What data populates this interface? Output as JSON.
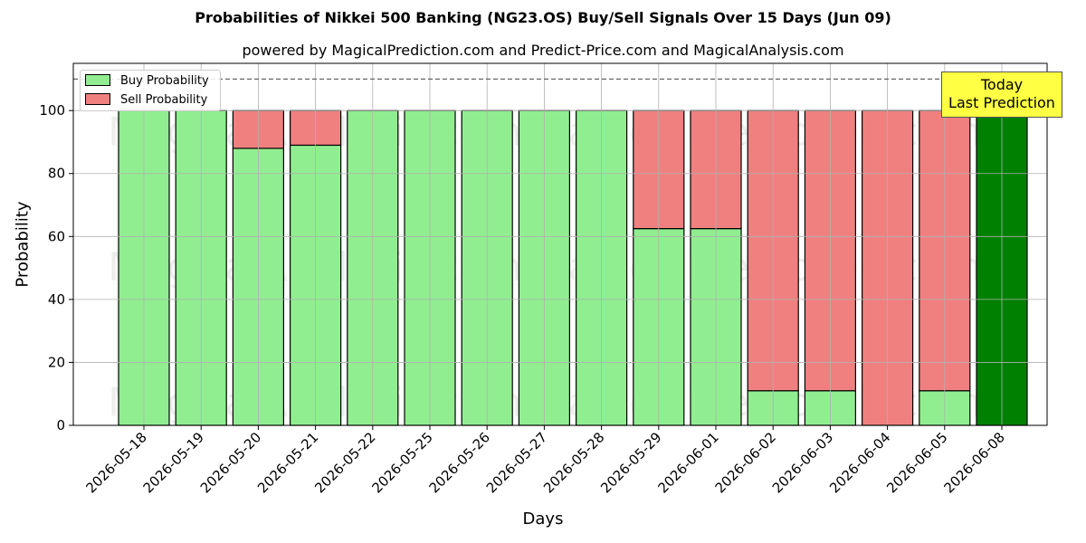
{
  "header": {
    "title": "Probabilities of Nikkei 500 Banking (NG23.OS) Buy/Sell Signals Over 15 Days (Jun 09)",
    "subtitle": "powered by MagicalPrediction.com and Predict-Price.com and MagicalAnalysis.com"
  },
  "watermarks": [
    "MagicalAnalysis.com",
    "MagicalPrediction.com"
  ],
  "annotation": {
    "line1": "Today",
    "line2": "Last Prediction"
  },
  "chart_data": {
    "type": "bar",
    "stacked": true,
    "title": "Probabilities of Nikkei 500 Banking (NG23.OS) Buy/Sell Signals Over 15 Days (Jun 09)",
    "subtitle": "powered by MagicalPrediction.com and Predict-Price.com and MagicalAnalysis.com",
    "xlabel": "Days",
    "ylabel": "Probability",
    "ylim": [
      0,
      115
    ],
    "yticks": [
      0,
      20,
      40,
      60,
      80,
      100
    ],
    "reference_line": 110,
    "grid": true,
    "legend_placement": "top-left",
    "categories": [
      "2026-05-18",
      "2026-05-19",
      "2026-05-20",
      "2026-05-21",
      "2026-05-22",
      "2026-05-25",
      "2026-05-26",
      "2026-05-27",
      "2026-05-28",
      "2026-05-29",
      "2026-06-01",
      "2026-06-02",
      "2026-06-03",
      "2026-06-04",
      "2026-06-05",
      "2026-06-08"
    ],
    "series": [
      {
        "name": "Buy Probability",
        "color": "#90ee90",
        "values": [
          100,
          100,
          88,
          89,
          100,
          100,
          100,
          100,
          100,
          62.5,
          62.5,
          11,
          11,
          0,
          11,
          100
        ]
      },
      {
        "name": "Sell Probability",
        "color": "#f08080",
        "values": [
          0,
          0,
          12,
          11,
          0,
          0,
          0,
          0,
          0,
          37.5,
          37.5,
          89,
          89,
          100,
          89,
          0
        ]
      }
    ],
    "highlight": {
      "category": "2026-06-08",
      "color": "#008000"
    }
  }
}
